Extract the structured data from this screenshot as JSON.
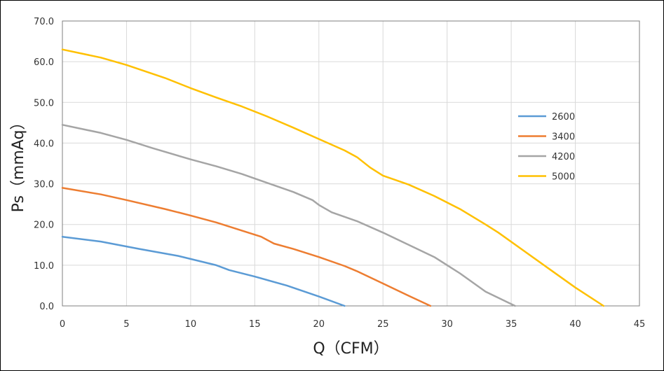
{
  "chart_data": {
    "type": "line",
    "title": "",
    "xlabel": "Q（CFM）",
    "ylabel": "Ps（mmAq）",
    "xlim": [
      0,
      45
    ],
    "ylim": [
      0,
      70
    ],
    "x_ticks": [
      "0",
      "5",
      "10",
      "15",
      "20",
      "25",
      "30",
      "35",
      "40",
      "45"
    ],
    "y_ticks": [
      "0.0",
      "10.0",
      "20.0",
      "30.0",
      "40.0",
      "50.0",
      "60.0",
      "70.0"
    ],
    "grid": true,
    "legend_position": "right",
    "series": [
      {
        "name": "2600",
        "color": "#5B9BD5",
        "points": [
          [
            0,
            17
          ],
          [
            3,
            15.8
          ],
          [
            6,
            14
          ],
          [
            9,
            12.3
          ],
          [
            12,
            10
          ],
          [
            13,
            8.8
          ],
          [
            15,
            7.2
          ],
          [
            17.5,
            5
          ],
          [
            20,
            2.3
          ],
          [
            22,
            0
          ]
        ]
      },
      {
        "name": "3400",
        "color": "#ED7D31",
        "points": [
          [
            0,
            29
          ],
          [
            3,
            27.4
          ],
          [
            5,
            26
          ],
          [
            8,
            23.8
          ],
          [
            10,
            22.2
          ],
          [
            12,
            20.5
          ],
          [
            14,
            18.5
          ],
          [
            15.5,
            17
          ],
          [
            16.5,
            15.3
          ],
          [
            18,
            14
          ],
          [
            20,
            12
          ],
          [
            22,
            9.8
          ],
          [
            23,
            8.5
          ],
          [
            25,
            5.5
          ],
          [
            27,
            2.5
          ],
          [
            28.7,
            0
          ]
        ]
      },
      {
        "name": "4200",
        "color": "#A5A5A5",
        "points": [
          [
            0,
            44.5
          ],
          [
            3,
            42.5
          ],
          [
            5,
            40.8
          ],
          [
            7,
            38.8
          ],
          [
            10,
            36
          ],
          [
            12,
            34.3
          ],
          [
            14,
            32.4
          ],
          [
            16,
            30.2
          ],
          [
            18,
            28
          ],
          [
            19.5,
            26
          ],
          [
            20,
            24.8
          ],
          [
            21,
            23
          ],
          [
            23,
            20.8
          ],
          [
            25,
            18
          ],
          [
            27,
            15
          ],
          [
            29,
            12
          ],
          [
            31,
            8
          ],
          [
            33,
            3.5
          ],
          [
            35.3,
            0
          ]
        ]
      },
      {
        "name": "5000",
        "color": "#FFC000",
        "points": [
          [
            0,
            63
          ],
          [
            3,
            61
          ],
          [
            5,
            59.2
          ],
          [
            8,
            56
          ],
          [
            10,
            53.5
          ],
          [
            12,
            51.2
          ],
          [
            14,
            49
          ],
          [
            16,
            46.5
          ],
          [
            18,
            43.8
          ],
          [
            20,
            41
          ],
          [
            22,
            38.2
          ],
          [
            23,
            36.5
          ],
          [
            24,
            34
          ],
          [
            25,
            32
          ],
          [
            27,
            29.8
          ],
          [
            29,
            27
          ],
          [
            31,
            23.8
          ],
          [
            33,
            20
          ],
          [
            34,
            18
          ],
          [
            36,
            13.5
          ],
          [
            38,
            9
          ],
          [
            40,
            4.5
          ],
          [
            42.2,
            0
          ]
        ]
      }
    ]
  }
}
